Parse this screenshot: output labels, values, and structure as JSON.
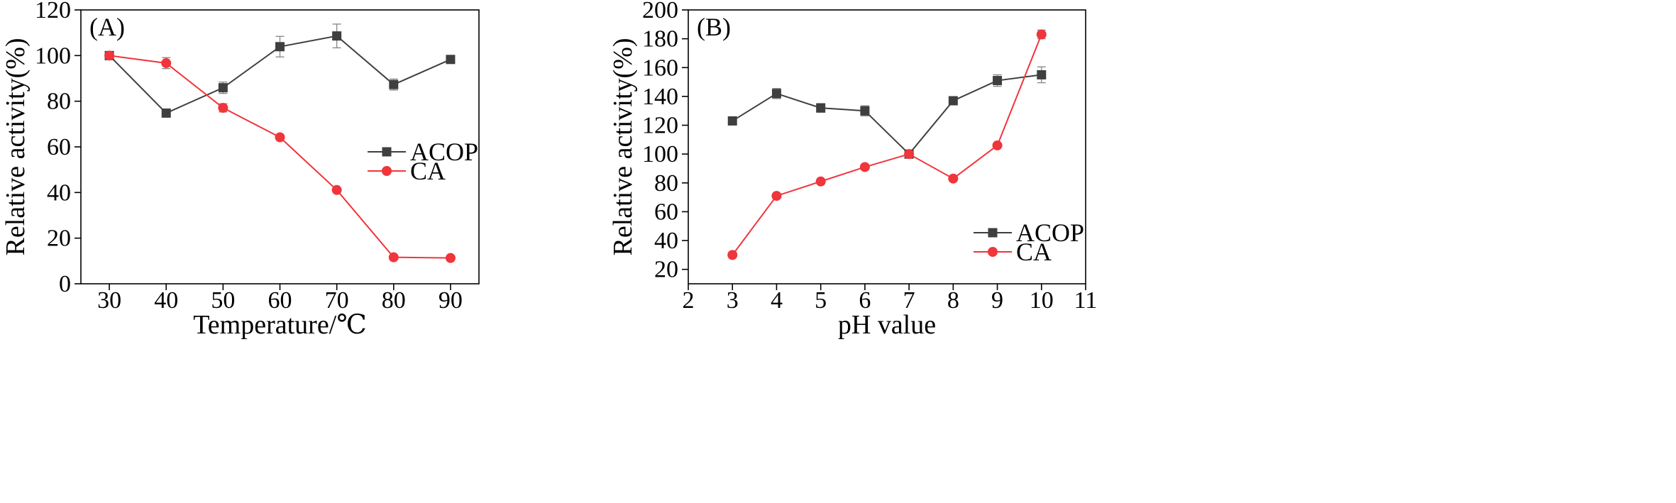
{
  "colors": {
    "acop": "#3f3f3f",
    "ca": "#f0353b",
    "errorbar": "#8c8c8c",
    "axis": "#000000"
  },
  "chart_data": [
    {
      "type": "line",
      "panel_label": "(A)",
      "xlabel": "Temperature/℃",
      "ylabel": "Relative activity(%)",
      "xlim": [
        25,
        95
      ],
      "ylim": [
        0,
        120
      ],
      "xticks": [
        30,
        40,
        50,
        60,
        70,
        80,
        90
      ],
      "yticks": [
        0,
        20,
        40,
        60,
        80,
        100,
        120
      ],
      "x": [
        30,
        40,
        50,
        60,
        70,
        80,
        90
      ],
      "legend_position": "right-middle",
      "series": [
        {
          "name": "ACOP",
          "marker": "square",
          "values": [
            100,
            74.8,
            85.9,
            103.9,
            108.6,
            87.3,
            98.3
          ],
          "errors": [
            0,
            1.5,
            2.5,
            4.5,
            5.2,
            2.4,
            1.6
          ]
        },
        {
          "name": "CA",
          "marker": "circle",
          "values": [
            100,
            96.7,
            77.1,
            64.2,
            41.1,
            11.6,
            11.3
          ],
          "errors": [
            0,
            2.4,
            1.8,
            0.6,
            0.6,
            0.3,
            0.3
          ]
        }
      ]
    },
    {
      "type": "line",
      "panel_label": "(B)",
      "xlabel": "pH value",
      "ylabel": "Relative activity(%)",
      "xlim": [
        2,
        11
      ],
      "ylim": [
        10,
        200
      ],
      "xticks": [
        2,
        3,
        4,
        5,
        6,
        7,
        8,
        9,
        10,
        11
      ],
      "yticks": [
        20,
        40,
        60,
        80,
        100,
        120,
        140,
        160,
        180,
        200
      ],
      "x": [
        3,
        4,
        5,
        6,
        7,
        8,
        9,
        10
      ],
      "legend_position": "bottom-right",
      "series": [
        {
          "name": "ACOP",
          "marker": "square",
          "values": [
            123,
            142,
            132,
            130,
            100,
            137,
            151,
            155
          ],
          "errors": [
            2,
            3.5,
            3,
            3.5,
            0,
            2.5,
            4,
            5.5
          ]
        },
        {
          "name": "CA",
          "marker": "circle",
          "values": [
            30,
            71,
            81,
            91,
            100,
            83,
            106,
            183
          ],
          "errors": [
            0.8,
            1,
            1,
            1,
            0,
            1,
            1.2,
            3
          ]
        }
      ]
    }
  ]
}
